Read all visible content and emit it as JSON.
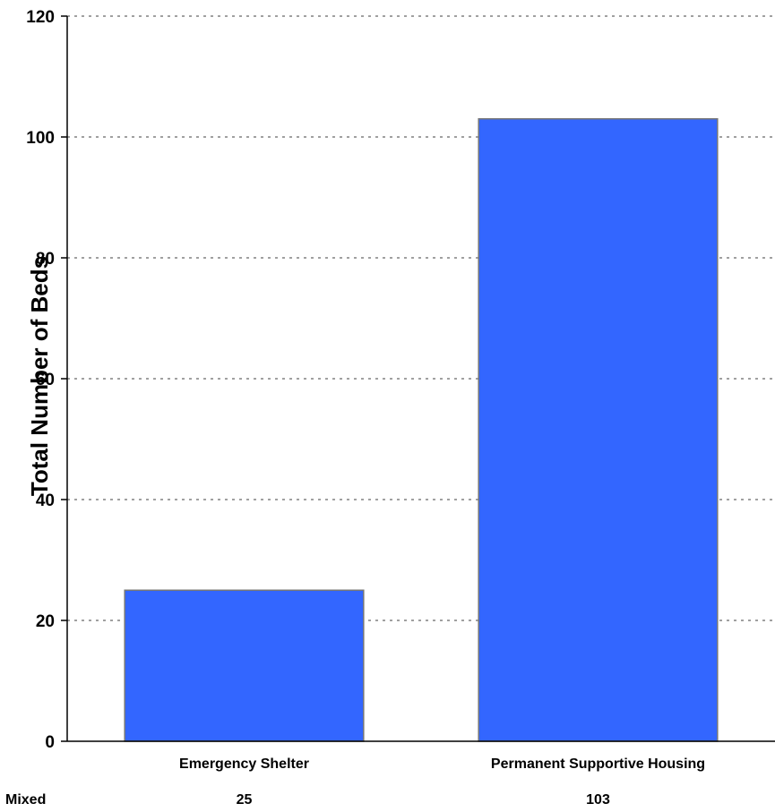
{
  "chart_data": {
    "type": "bar",
    "title": "",
    "xlabel": "",
    "ylabel": "Total Number of Beds",
    "categories": [
      "Emergency Shelter",
      "Permanent Supportive Housing"
    ],
    "values": [
      25,
      103
    ],
    "ylim": [
      0,
      120
    ],
    "yticks": [
      0,
      20,
      40,
      60,
      80,
      100,
      120
    ],
    "grid": "horizontal dotted",
    "bar_color": "#3366FF",
    "bar_edge_color": "#777777",
    "data_table": {
      "row_label": "Mixed",
      "values": [
        "25",
        "103"
      ]
    }
  }
}
